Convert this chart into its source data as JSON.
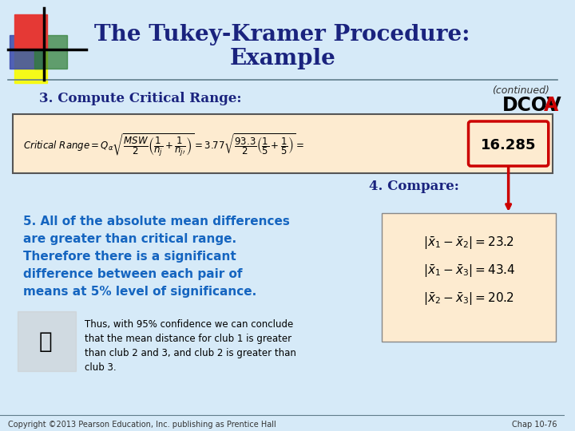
{
  "title_line1": "The Tukey-Kramer Procedure:",
  "title_line2": "Example",
  "continued_text": "(continued)",
  "dcova_text": "DCOV",
  "dcova_a": "A",
  "section3": "3. Compute Critical Range:",
  "section4": "4. Compare:",
  "section5_blue": "5. All of the absolute mean differences\nare greater than critical range.\nTherefore there is a significant\ndifference between each pair of\nmeans at 5% level of significance.",
  "section5_black": "Thus, with 95% confidence we can conclude\nthat the mean distance for club 1 is greater\nthan club 2 and 3, and club 2 is greater than\nclub 3.",
  "critical_value": "16.285",
  "compare_eq1": "|x̅₁ − x̅₂| = 23.2",
  "compare_eq2": "|x̅₁ − x̅₃| = 43.4",
  "compare_eq3": "|x̅₂ − x̅₃| = 20.2",
  "copyright": "Copyright ©2013 Pearson Education, Inc. publishing as Prentice Hall",
  "chap": "Chap 10-76",
  "bg_color": "#d6eaf8",
  "formula_bg": "#fdebd0",
  "compare_bg": "#fdebd0",
  "title_color": "#1a237e",
  "blue_text_color": "#1565c0",
  "section_color": "#1a237e",
  "red_color": "#cc0000",
  "dark_color": "#1a237e"
}
